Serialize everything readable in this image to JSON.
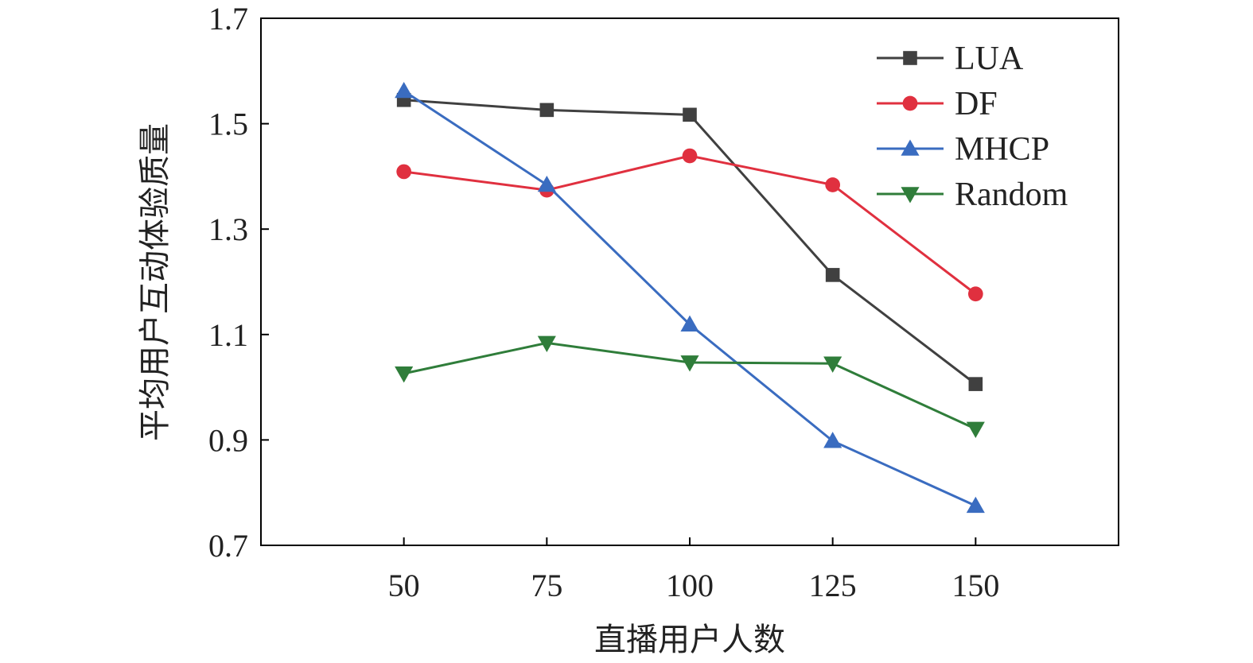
{
  "chart_data": {
    "type": "line",
    "xlabel": "直播用户人数",
    "ylabel": "平均用户互动体验质量",
    "x": [
      50,
      75,
      100,
      125,
      150
    ],
    "x_tick_labels": [
      "50",
      "75",
      "100",
      "125",
      "150"
    ],
    "xlim": [
      25,
      175
    ],
    "ylim": [
      0.7,
      1.7
    ],
    "y_ticks": [
      0.7,
      0.9,
      1.1,
      1.3,
      1.5,
      1.7
    ],
    "y_tick_labels": [
      "0.7",
      "0.9",
      "1.1",
      "1.3",
      "1.5",
      "1.7"
    ],
    "grid": false,
    "legend_position": "top-right",
    "series": [
      {
        "name": "LUA",
        "marker": "square",
        "color": "#404040",
        "values": [
          1.545,
          1.526,
          1.517,
          1.213,
          1.006
        ]
      },
      {
        "name": "DF",
        "marker": "circle",
        "color": "#e0303f",
        "values": [
          1.409,
          1.374,
          1.439,
          1.384,
          1.177
        ]
      },
      {
        "name": "MHCP",
        "marker": "triangle-up",
        "color": "#3a6cc0",
        "values": [
          1.562,
          1.384,
          1.119,
          0.898,
          0.775
        ]
      },
      {
        "name": "Random",
        "marker": "triangle-down",
        "color": "#2f7d3a",
        "values": [
          1.026,
          1.084,
          1.047,
          1.045,
          0.921
        ]
      }
    ]
  }
}
